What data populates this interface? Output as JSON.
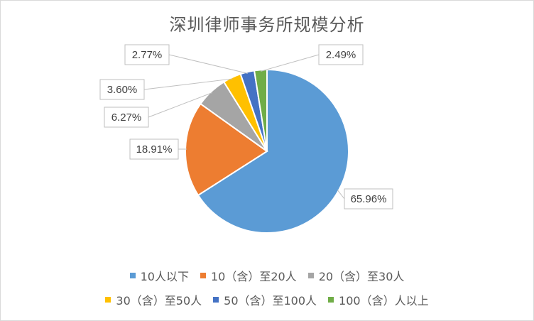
{
  "chart_data": {
    "type": "pie",
    "title": "深圳律师事务所规模分析",
    "categories": [
      "10人以下",
      "10（含）至20人",
      "20（含）至30人",
      "30（含）至50人",
      "50（含）至100人",
      "100（含）人以上"
    ],
    "values": [
      65.96,
      18.91,
      6.27,
      3.6,
      2.77,
      2.49
    ],
    "data_labels": [
      "65.96%",
      "18.91%",
      "6.27%",
      "3.60%",
      "2.77%",
      "2.49%"
    ],
    "colors": [
      "#5B9BD5",
      "#ED7D31",
      "#A5A5A5",
      "#FFC000",
      "#4472C4",
      "#70AD47"
    ],
    "legend_position": "bottom"
  }
}
